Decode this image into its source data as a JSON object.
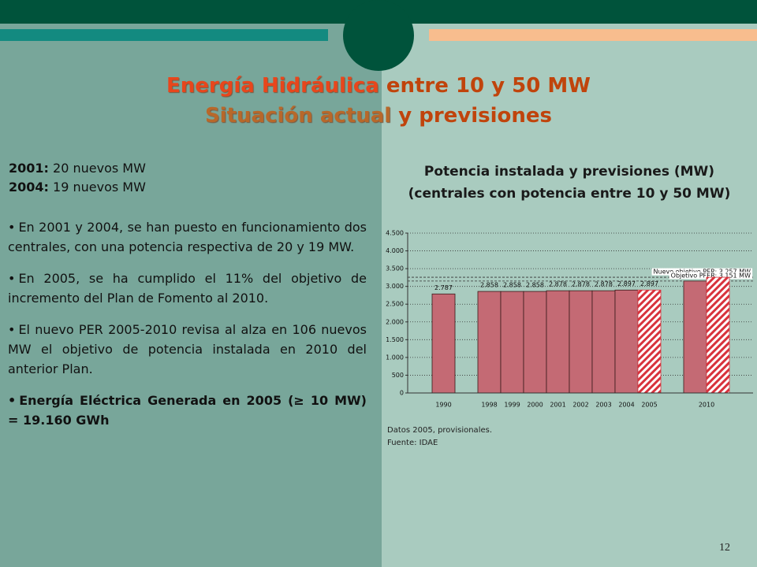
{
  "slide": {
    "title": [
      "Energía Hidráulica",
      " entre 10 y 50 MW"
    ],
    "subtitle": [
      "Situación actual",
      " y previsiones"
    ],
    "facts": [
      {
        "label": "2001:",
        "text": " 20 nuevos MW"
      },
      {
        "label": "2004:",
        "text": " 19 nuevos MW"
      }
    ],
    "bullets": [
      "En 2001 y 2004, se han puesto en funcionamiento dos centrales, con una potencia respectiva de 20 y 19 MW.",
      "En 2005, se ha cumplido el 11% del objetivo de incremento del Plan de Fomento al 2010.",
      "El nuevo PER 2005-2010 revisa al alza en 106 nuevos MW el objetivo de potencia instalada en 2010 del anterior Plan.",
      "Energía Eléctrica Generada en 2005 (≥ 10 MW) = 19.160 GWh"
    ],
    "page_number": "12"
  },
  "chart_data": {
    "type": "bar",
    "title": "Potencia instalada y previsiones (MW)",
    "subtitle": "(centrales con potencia entre 10 y 50 MW)",
    "categories": [
      "1990",
      "1998",
      "1999",
      "2000",
      "2001",
      "2002",
      "2003",
      "2004",
      "2005",
      "2010"
    ],
    "series": [
      {
        "color": "#c46a74",
        "hatched": false,
        "values": [
          2787,
          2858,
          2858,
          2858,
          2878,
          2878,
          2878,
          2897,
          null,
          3151
        ],
        "value_labels": [
          "2.787",
          "2.858",
          "2.858",
          "2.858",
          "2.878",
          "2.878",
          "2.878",
          "2.897",
          null,
          null
        ]
      },
      {
        "color": "#d8323c",
        "hatched": true,
        "values": [
          null,
          null,
          null,
          null,
          null,
          null,
          null,
          null,
          2897,
          3257
        ],
        "value_labels": [
          null,
          null,
          null,
          null,
          null,
          null,
          null,
          null,
          "2.897",
          null
        ]
      }
    ],
    "reference_lines": [
      {
        "value": 3257,
        "label": "Nuevo objetivo PER: 3.257 MW"
      },
      {
        "value": 3151,
        "label": "Objetivo PFER: 3.151 MW"
      }
    ],
    "ylim": [
      0,
      4500
    ],
    "yticks": [
      0,
      {
        "value": 500,
        "label": "500"
      },
      {
        "value": 1000,
        "label": "1.000"
      },
      {
        "value": 1500,
        "label": "1.500"
      },
      {
        "value": 2000,
        "label": "2.000"
      },
      {
        "value": 2500,
        "label": "2.500"
      },
      {
        "value": 3000,
        "label": "3.000"
      },
      {
        "value": 3500,
        "label": "3.500"
      },
      {
        "value": 4000,
        "label": "4.000"
      },
      {
        "value": 4500,
        "label": "4.500"
      }
    ],
    "grid": true,
    "notes": [
      "Datos 2005, provisionales.",
      "Fuente: IDAE"
    ]
  }
}
